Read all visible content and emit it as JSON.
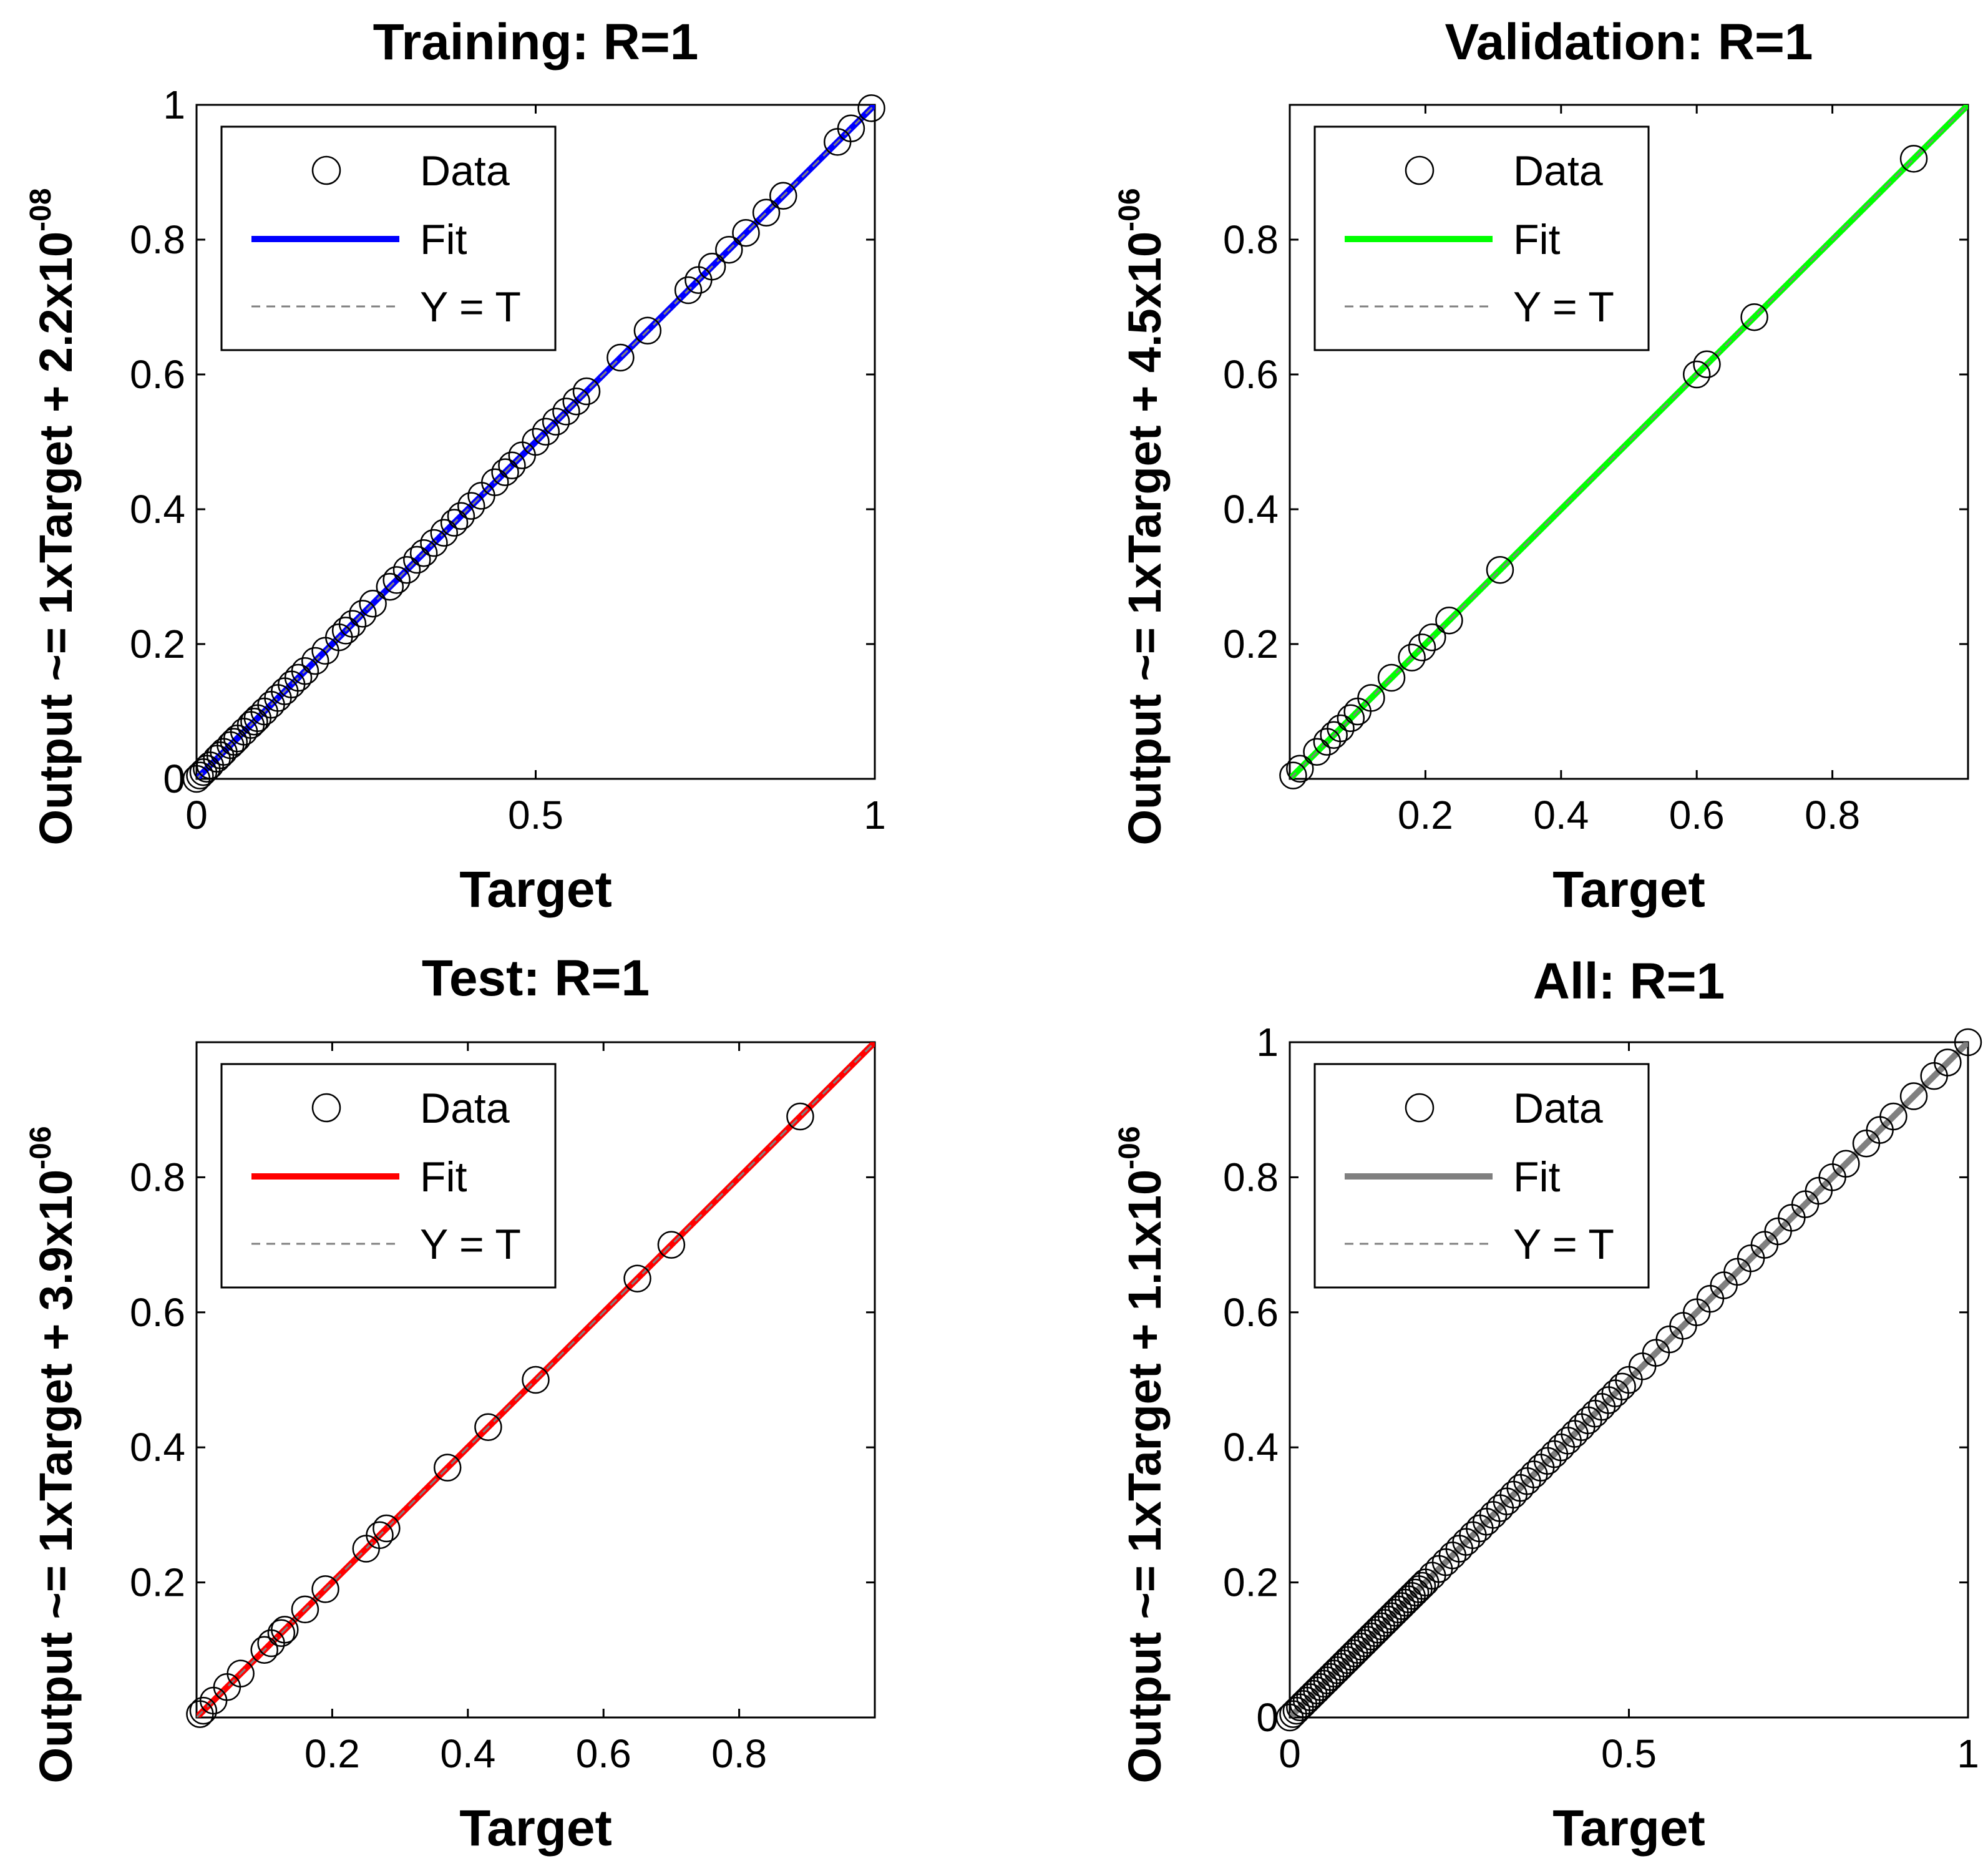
{
  "colors": {
    "training_fit": "#0000ff",
    "validation_fit": "#00ff00",
    "test_fit": "#ff0000",
    "all_fit": "#808080",
    "ideal_line": "#808080",
    "markers": "#000000"
  },
  "chart_data": [
    {
      "type": "scatter",
      "title": "Training: R=1",
      "xlabel": "Target",
      "ylabel_main": "Output ~= 1xTarget + 2.2x10",
      "ylabel_exp": "-08",
      "xlim": [
        0,
        1
      ],
      "ylim": [
        0,
        1
      ],
      "xticks": [
        0,
        0.5,
        1
      ],
      "xtick_labels": [
        "0",
        "0.5",
        "1"
      ],
      "yticks": [
        0,
        0.2,
        0.4,
        0.6,
        0.8,
        1
      ],
      "ytick_labels": [
        "0",
        "0.2",
        "0.4",
        "0.6",
        "0.8",
        "1"
      ],
      "fit_color": "#0000ff",
      "fit": {
        "slope": 1,
        "intercept": 0,
        "from": [
          0,
          1
        ]
      },
      "legend": {
        "position": "top-left",
        "entries": [
          "Data",
          "Fit",
          "Y = T"
        ]
      },
      "grid": false,
      "points": [
        0,
        0.005,
        0.01,
        0.015,
        0.02,
        0.03,
        0.035,
        0.04,
        0.05,
        0.055,
        0.06,
        0.07,
        0.08,
        0.085,
        0.09,
        0.1,
        0.11,
        0.12,
        0.13,
        0.14,
        0.15,
        0.16,
        0.175,
        0.19,
        0.21,
        0.22,
        0.23,
        0.245,
        0.26,
        0.285,
        0.295,
        0.31,
        0.325,
        0.335,
        0.35,
        0.365,
        0.38,
        0.39,
        0.405,
        0.42,
        0.44,
        0.455,
        0.465,
        0.48,
        0.5,
        0.515,
        0.53,
        0.545,
        0.56,
        0.575,
        0.625,
        0.665,
        0.725,
        0.74,
        0.76,
        0.785,
        0.81,
        0.84,
        0.865,
        0.945,
        0.965,
        0.995
      ]
    },
    {
      "type": "scatter",
      "title": "Validation: R=1",
      "xlabel": "Target",
      "ylabel_main": "Output ~= 1xTarget + 4.5x10",
      "ylabel_exp": "-06",
      "xlim": [
        0,
        1
      ],
      "ylim": [
        0,
        1
      ],
      "xticks": [
        0.2,
        0.4,
        0.6,
        0.8
      ],
      "xtick_labels": [
        "0.2",
        "0.4",
        "0.6",
        "0.8"
      ],
      "yticks": [
        0.2,
        0.4,
        0.6,
        0.8
      ],
      "ytick_labels": [
        "0.2",
        "0.4",
        "0.6",
        "0.8"
      ],
      "fit_color": "#00ff00",
      "fit": {
        "slope": 1,
        "intercept": 0,
        "from": [
          0,
          1
        ]
      },
      "legend": {
        "position": "top-left",
        "entries": [
          "Data",
          "Fit",
          "Y = T"
        ]
      },
      "grid": false,
      "points": [
        0.005,
        0.015,
        0.04,
        0.055,
        0.065,
        0.075,
        0.09,
        0.1,
        0.12,
        0.15,
        0.18,
        0.195,
        0.21,
        0.235,
        0.31,
        0.6,
        0.615,
        0.685,
        0.92
      ]
    },
    {
      "type": "scatter",
      "title": "Test: R=1",
      "xlabel": "Target",
      "ylabel_main": "Output ~= 1xTarget + 3.9x10",
      "ylabel_exp": "-06",
      "xlim": [
        0,
        1
      ],
      "ylim": [
        0,
        1
      ],
      "xticks": [
        0.2,
        0.4,
        0.6,
        0.8
      ],
      "xtick_labels": [
        "0.2",
        "0.4",
        "0.6",
        "0.8"
      ],
      "yticks": [
        0.2,
        0.4,
        0.6,
        0.8
      ],
      "ytick_labels": [
        "0.2",
        "0.4",
        "0.6",
        "0.8"
      ],
      "fit_color": "#ff0000",
      "fit": {
        "slope": 1,
        "intercept": 0,
        "from": [
          0,
          1
        ]
      },
      "legend": {
        "position": "top-left",
        "entries": [
          "Data",
          "Fit",
          "Y = T"
        ]
      },
      "grid": false,
      "points": [
        0.005,
        0.01,
        0.025,
        0.045,
        0.065,
        0.1,
        0.11,
        0.125,
        0.13,
        0.16,
        0.19,
        0.25,
        0.27,
        0.28,
        0.37,
        0.43,
        0.5,
        0.65,
        0.7,
        0.89
      ]
    },
    {
      "type": "scatter",
      "title": "All: R=1",
      "xlabel": "Target",
      "ylabel_main": "Output ~= 1xTarget + 1.1x10",
      "ylabel_exp": "-06",
      "xlim": [
        0,
        1
      ],
      "ylim": [
        0,
        1
      ],
      "xticks": [
        0,
        0.5,
        1
      ],
      "xtick_labels": [
        "0",
        "0.5",
        "1"
      ],
      "yticks": [
        0,
        0.2,
        0.4,
        0.6,
        0.8,
        1
      ],
      "ytick_labels": [
        "0",
        "0.2",
        "0.4",
        "0.6",
        "0.8",
        "1"
      ],
      "fit_color": "#808080",
      "fit": {
        "slope": 1,
        "intercept": 0,
        "from": [
          0,
          1
        ]
      },
      "legend": {
        "position": "top-left",
        "entries": [
          "Data",
          "Fit",
          "Y = T"
        ]
      },
      "grid": false,
      "points": [
        0,
        0.005,
        0.01,
        0.015,
        0.02,
        0.025,
        0.03,
        0.035,
        0.04,
        0.045,
        0.05,
        0.055,
        0.06,
        0.065,
        0.07,
        0.075,
        0.08,
        0.085,
        0.09,
        0.095,
        0.1,
        0.105,
        0.11,
        0.115,
        0.12,
        0.125,
        0.13,
        0.135,
        0.14,
        0.145,
        0.15,
        0.155,
        0.16,
        0.165,
        0.17,
        0.175,
        0.18,
        0.185,
        0.19,
        0.195,
        0.2,
        0.21,
        0.22,
        0.23,
        0.24,
        0.25,
        0.26,
        0.27,
        0.28,
        0.29,
        0.3,
        0.31,
        0.32,
        0.33,
        0.34,
        0.35,
        0.36,
        0.37,
        0.38,
        0.39,
        0.4,
        0.41,
        0.42,
        0.43,
        0.44,
        0.45,
        0.46,
        0.47,
        0.48,
        0.49,
        0.5,
        0.52,
        0.54,
        0.56,
        0.58,
        0.6,
        0.62,
        0.64,
        0.66,
        0.68,
        0.7,
        0.72,
        0.74,
        0.76,
        0.78,
        0.8,
        0.82,
        0.85,
        0.87,
        0.89,
        0.92,
        0.95,
        0.97,
        1.0
      ]
    }
  ]
}
